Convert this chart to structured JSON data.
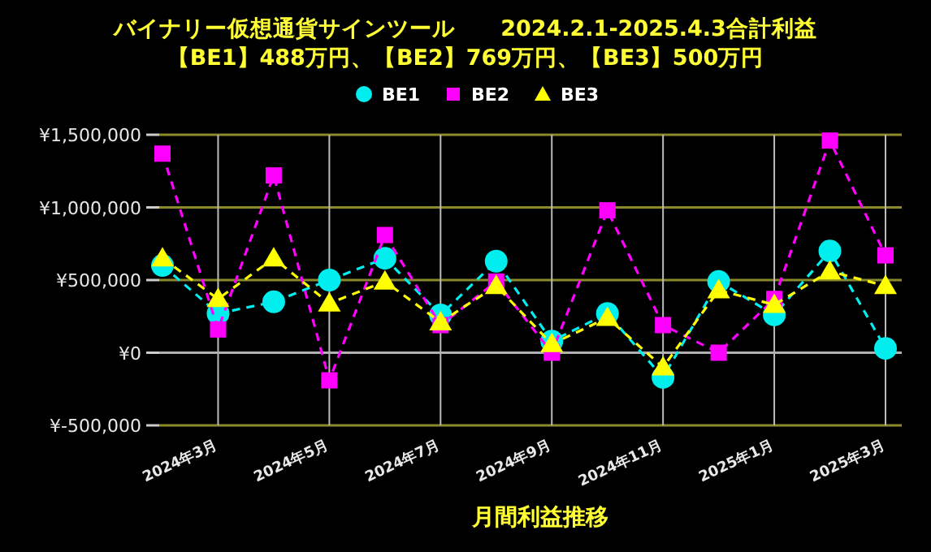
{
  "chart_data": {
    "type": "line",
    "title": "バイナリー仮想通貨サインツール　　2024.2.1-2025.4.3合計利益",
    "subtitle": "【BE1】488万円、【BE2】769万円、【BE3】500万円",
    "xlabel": "月間利益推移",
    "categories": [
      null,
      "2024年3月",
      null,
      "2024年5月",
      null,
      "2024年7月",
      null,
      "2024年9月",
      null,
      "2024年11月",
      null,
      "2025年1月",
      null,
      "2025年3月"
    ],
    "series": [
      {
        "name": "BE1",
        "color": "#00eeee",
        "marker": "circle",
        "values": [
          600000,
          270000,
          350000,
          500000,
          650000,
          260000,
          630000,
          80000,
          270000,
          -170000,
          490000,
          260000,
          700000,
          30000
        ]
      },
      {
        "name": "BE2",
        "color": "#ff00ff",
        "marker": "square",
        "values": [
          1370000,
          160000,
          1220000,
          -190000,
          810000,
          190000,
          490000,
          0,
          980000,
          190000,
          0,
          370000,
          1460000,
          670000
        ]
      },
      {
        "name": "BE3",
        "color": "#ffff00",
        "marker": "triangle",
        "values": [
          650000,
          370000,
          650000,
          340000,
          490000,
          210000,
          460000,
          60000,
          240000,
          -100000,
          430000,
          330000,
          560000,
          460000
        ]
      }
    ],
    "line_style": "dashed",
    "ylim": [
      -500000,
      1500000
    ],
    "yticks": [
      {
        "value": -500000,
        "label": "¥-500,000"
      },
      {
        "value": 0,
        "label": "¥0"
      },
      {
        "value": 500000,
        "label": "¥500,000"
      },
      {
        "value": 1000000,
        "label": "¥1,000,000"
      },
      {
        "value": 1500000,
        "label": "¥1,500,000"
      }
    ],
    "ref_lines": [
      {
        "axis": "y",
        "value": 0,
        "color": "#b0b0b0"
      }
    ],
    "grid": true,
    "legend": "top"
  }
}
